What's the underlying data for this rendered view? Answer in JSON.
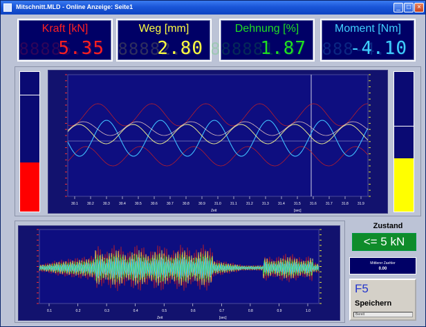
{
  "window": {
    "title": "Mitschnitt.MLD - Online Anzeige: Seite1"
  },
  "gauges": [
    {
      "label": "Kraft [kN]",
      "value": "5.35",
      "ghost": "88885.35",
      "color": "#ff2020"
    },
    {
      "label": "Weg [mm]",
      "value": "2.80",
      "ghost": "88882.80",
      "color": "#ffff40"
    },
    {
      "label": "Dehnung [%]",
      "value": "1.87",
      "ghost": "888881.87",
      "color": "#20e020"
    },
    {
      "label": "Moment [Nm]",
      "value": "-4.10",
      "ghost": "888-4.10",
      "color": "#40d0ff"
    }
  ],
  "left_bar": {
    "fill_fraction": 0.35,
    "marker_fraction": 0.84,
    "color": "#ff0000"
  },
  "right_bar": {
    "fill_fraction": 0.38,
    "marker_fraction": 0.62,
    "color": "#ffff00"
  },
  "upper_chart": {
    "x_ticks": [
      "30.1",
      "30.2",
      "30.3",
      "30.4",
      "30.5",
      "30.6",
      "30.7",
      "30.8",
      "30.9",
      "31.0",
      "31.1",
      "31.2",
      "31.3",
      "31.4",
      "31.5",
      "31.6",
      "31.7",
      "31.8",
      "31.9"
    ],
    "x_label": "Zeit",
    "x_label_right": "[sec]"
  },
  "lower_chart": {
    "x_ticks": [
      "0.1",
      "0.2",
      "0.3",
      "0.4",
      "0.5",
      "0.6",
      "0.7",
      "0.8",
      "0.9",
      "1.0"
    ],
    "x_label": "Zeit",
    "x_label_right": "[sec]"
  },
  "status": {
    "zustand_label": "Zustand",
    "zustand_value": "<= 5 kN",
    "info_label": "Mittlerer Zaehler",
    "info_value": "0.00",
    "f5_key": "F5",
    "f5_action": "Speichern",
    "f5_status": "Bereit"
  },
  "colors": {
    "kraft": "#ff2020",
    "weg": "#ffff40",
    "dehnung": "#20e020",
    "moment": "#40d0ff",
    "plot_bg": "#12126e",
    "zustand_ok": "#0f8c2a"
  }
}
